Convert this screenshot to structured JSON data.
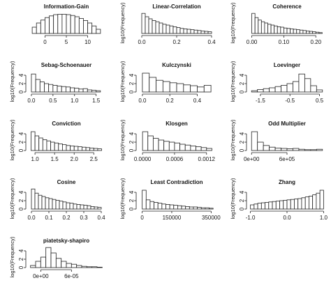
{
  "chart_data": [
    {
      "type": "histogram",
      "title": "Information-Gain",
      "bins": [
        -3,
        -2,
        -1,
        0,
        1,
        2,
        3,
        4,
        5,
        6,
        7,
        8,
        9,
        10,
        11,
        12,
        13
      ],
      "values": [
        1.5,
        2.5,
        3.2,
        3.8,
        4.2,
        4.5,
        4.6,
        4.6,
        4.5,
        4.3,
        4,
        3.6,
        3.1,
        2.5,
        1.8,
        1
      ],
      "xlim": [
        -4,
        14
      ],
      "xticks": [
        0,
        5,
        10
      ],
      "ylim": [
        0,
        5
      ]
    },
    {
      "type": "histogram",
      "title": "Linear-Correlation",
      "ylabel": "log10(Frequency)",
      "bins": [
        0,
        0.02,
        0.04,
        0.06,
        0.08,
        0.1,
        0.12,
        0.14,
        0.16,
        0.18,
        0.2,
        0.22,
        0.24,
        0.26,
        0.28,
        0.3,
        0.32,
        0.34,
        0.36,
        0.38,
        0.4
      ],
      "values": [
        4.8,
        4,
        3.5,
        3.1,
        2.8,
        2.5,
        2.2,
        2,
        1.8,
        1.6,
        1.4,
        1.2,
        1.1,
        1,
        0.9,
        0.8,
        0.7,
        0.6,
        0.5,
        0.4
      ],
      "xlim": [
        -0.02,
        0.42
      ],
      "xticks": [
        {
          "value": 0,
          "label": "0.0"
        },
        0.2,
        0.4
      ],
      "ylim": [
        0,
        5
      ]
    },
    {
      "type": "histogram",
      "title": "Coherence",
      "ylabel": "log10(Frequency)",
      "bins": [
        0,
        0.01,
        0.02,
        0.03,
        0.04,
        0.05,
        0.06,
        0.07,
        0.08,
        0.09,
        0.1,
        0.11,
        0.12,
        0.13,
        0.14,
        0.15,
        0.16,
        0.17,
        0.18,
        0.19,
        0.2,
        0.21,
        0.22
      ],
      "values": [
        4.8,
        3.8,
        3.2,
        2.8,
        2.5,
        2.2,
        2,
        1.8,
        1.6,
        1.5,
        1.3,
        1.2,
        1.1,
        1,
        0.9,
        0.8,
        0.7,
        0.6,
        0.5,
        0.4,
        0.3,
        0.2
      ],
      "xlim": [
        -0.01,
        0.23
      ],
      "xticks": [
        {
          "value": 0,
          "label": "0.00"
        },
        {
          "value": 0.1,
          "label": "0.10"
        },
        {
          "value": 0.2,
          "label": "0.20"
        }
      ],
      "ylim": [
        0,
        5
      ]
    },
    {
      "type": "histogram",
      "title": "Sebag-Schoenauer",
      "ylabel": "log10(Frequency)",
      "bins": [
        0,
        0.1,
        0.2,
        0.3,
        0.4,
        0.5,
        0.6,
        0.7,
        0.8,
        0.9,
        1,
        1.1,
        1.2,
        1.3,
        1.4,
        1.5,
        1.6
      ],
      "values": [
        4.3,
        3,
        2.4,
        2,
        1.8,
        1.6,
        1.4,
        1.3,
        1.2,
        1,
        0.9,
        0.7,
        0.8,
        0.5,
        0.4,
        0.3
      ],
      "xlim": [
        -0.08,
        1.7
      ],
      "xticks": [
        {
          "value": 0,
          "label": "0.0"
        },
        0.5,
        {
          "value": 1,
          "label": "1.0"
        },
        1.5
      ],
      "ylim": [
        0,
        5
      ],
      "yticks": [
        0,
        2,
        4
      ]
    },
    {
      "type": "histogram",
      "title": "Kulczynski",
      "ylabel": "log10(Frequency)",
      "bins": [
        0,
        0.05,
        0.1,
        0.15,
        0.2,
        0.25,
        0.3,
        0.35,
        0.4,
        0.45,
        0.5
      ],
      "values": [
        4.5,
        3.5,
        2.8,
        2.5,
        2.2,
        2,
        1.7,
        1.5,
        1.2,
        1.6
      ],
      "xlim": [
        -0.03,
        0.53
      ],
      "xticks": [
        {
          "value": 0,
          "label": "0.0"
        },
        0.2,
        0.4
      ],
      "ylim": [
        0,
        5
      ],
      "yticks": [
        0,
        2,
        4
      ]
    },
    {
      "type": "histogram",
      "title": "Loevinger",
      "ylabel": "log10(Frequency)",
      "bins": [
        -1.8,
        -1.6,
        -1.4,
        -1.2,
        -1,
        -0.8,
        -0.6,
        -0.4,
        -0.2,
        0,
        0.2,
        0.4,
        0.6
      ],
      "values": [
        0.3,
        0.6,
        0.8,
        1,
        1.3,
        1.6,
        2,
        2.5,
        4.3,
        3.2,
        1.5,
        0.5
      ],
      "xlim": [
        -1.9,
        0.7
      ],
      "xticks": [
        -1.5,
        -0.5,
        0.5
      ],
      "ylim": [
        0,
        5
      ],
      "yticks": [
        0,
        2,
        4
      ]
    },
    {
      "type": "histogram",
      "title": "Conviction",
      "ylabel": "log10(Frequency)",
      "bins": [
        0.9,
        1,
        1.1,
        1.2,
        1.3,
        1.4,
        1.5,
        1.6,
        1.7,
        1.8,
        1.9,
        2,
        2.1,
        2.2,
        2.3,
        2.4,
        2.5,
        2.6,
        2.7
      ],
      "values": [
        4.5,
        3.5,
        3,
        2.6,
        2.3,
        2,
        1.8,
        1.6,
        1.4,
        1.2,
        1.1,
        1,
        0.9,
        0.8,
        0.7,
        0.6,
        0.5,
        0.4
      ],
      "xlim": [
        0.82,
        2.78
      ],
      "xticks": [
        {
          "value": 1,
          "label": "1.0"
        },
        1.5,
        {
          "value": 2,
          "label": "2.0"
        },
        2.5
      ],
      "ylim": [
        0,
        5
      ],
      "yticks": [
        0,
        2,
        4
      ]
    },
    {
      "type": "histogram",
      "title": "Klosgen",
      "ylabel": "log10(Frequency)",
      "bins": [
        0,
        0.0001,
        0.0002,
        0.0003,
        0.0004,
        0.0005,
        0.0006,
        0.0007,
        0.0008,
        0.0009,
        0.001,
        0.0011,
        0.0012,
        0.0013
      ],
      "values": [
        4.5,
        3.5,
        2.9,
        2.5,
        2.2,
        2,
        1.8,
        1.5,
        1.3,
        1.1,
        0.9,
        0.7,
        0.5
      ],
      "xlim": [
        -8e-05,
        0.00136
      ],
      "xticks": [
        {
          "value": 0,
          "label": "0.0000"
        },
        0.0006,
        0.0012
      ],
      "ylim": [
        0,
        5
      ],
      "yticks": [
        0,
        2,
        4
      ]
    },
    {
      "type": "histogram",
      "title": "Odd Multiplier",
      "ylabel": "log10(Frequency)",
      "bins": [
        0,
        100000,
        200000,
        300000,
        400000,
        500000,
        600000,
        700000,
        800000,
        900000,
        1000000,
        1100000,
        1200000
      ],
      "values": [
        4.5,
        2,
        1.2,
        0.8,
        0.6,
        0.5,
        0.4,
        0.5,
        0.3,
        0.2,
        0.2,
        0.3
      ],
      "xlim": [
        -50000,
        1250000
      ],
      "xticks": [
        {
          "value": 0,
          "label": "0e+00"
        },
        {
          "value": 600000,
          "label": "6e+05"
        }
      ],
      "ylim": [
        0,
        5
      ],
      "yticks": [
        0,
        2,
        4
      ]
    },
    {
      "type": "histogram",
      "title": "Cosine",
      "ylabel": "log10(Frequency)",
      "bins": [
        0,
        0.02,
        0.04,
        0.06,
        0.08,
        0.1,
        0.12,
        0.14,
        0.16,
        0.18,
        0.2,
        0.22,
        0.24,
        0.26,
        0.28,
        0.3,
        0.32,
        0.34,
        0.36,
        0.38,
        0.4
      ],
      "values": [
        4.8,
        3.8,
        3.3,
        3,
        2.7,
        2.5,
        2.3,
        2.1,
        1.9,
        1.7,
        1.5,
        1.4,
        1.2,
        1.1,
        1,
        0.9,
        0.8,
        0.6,
        0.5,
        0.4
      ],
      "xlim": [
        -0.02,
        0.42
      ],
      "xticks": [
        {
          "value": 0,
          "label": "0.0"
        },
        0.1,
        0.2,
        0.3,
        0.4
      ],
      "ylim": [
        0,
        5
      ],
      "yticks": [
        0,
        2,
        4
      ]
    },
    {
      "type": "histogram",
      "title": "Least Contradiction",
      "ylabel": "log10(Frequency)",
      "bins": [
        0,
        20000,
        40000,
        60000,
        80000,
        100000,
        120000,
        140000,
        160000,
        180000,
        200000,
        220000,
        240000,
        260000,
        280000,
        300000,
        320000,
        340000,
        360000
      ],
      "values": [
        4.5,
        2.2,
        1.8,
        1.6,
        1.4,
        1.2,
        1.1,
        1,
        0.9,
        0.8,
        0.7,
        0.6,
        0.5,
        0.5,
        0.4,
        0.3,
        0.3,
        0.2
      ],
      "xlim": [
        -20000,
        370000
      ],
      "xticks": [
        0,
        150000,
        350000
      ],
      "ylim": [
        0,
        5
      ],
      "yticks": [
        0,
        2,
        4
      ]
    },
    {
      "type": "histogram",
      "title": "Zhang",
      "ylabel": "log10(Frequency)",
      "bins": [
        -1,
        -0.9,
        -0.8,
        -0.7,
        -0.6,
        -0.5,
        -0.4,
        -0.3,
        -0.2,
        -0.1,
        0,
        0.1,
        0.2,
        0.3,
        0.4,
        0.5,
        0.6,
        0.7,
        0.8,
        0.9,
        1
      ],
      "values": [
        1,
        1.2,
        1.4,
        1.5,
        1.6,
        1.7,
        1.8,
        1.9,
        2,
        2.1,
        2.2,
        2.3,
        2.4,
        2.5,
        2.7,
        2.9,
        3.1,
        3.4,
        3.8,
        4.5
      ],
      "xlim": [
        -1.05,
        1.05
      ],
      "xticks": [
        {
          "value": -1,
          "label": "-1.0"
        },
        {
          "value": 0,
          "label": "0.0"
        },
        {
          "value": 1,
          "label": "1.0"
        }
      ],
      "ylim": [
        0,
        5
      ],
      "yticks": [
        0,
        2,
        4
      ]
    },
    {
      "type": "histogram",
      "title": "piatetsky-shapiro",
      "ylabel": "log10(Frequency)",
      "bins": [
        -2e-05,
        -1e-05,
        0,
        1e-05,
        2e-05,
        3e-05,
        4e-05,
        5e-05,
        6e-05,
        7e-05,
        8e-05,
        9e-05,
        0.0001,
        0.00011,
        0.00012
      ],
      "values": [
        0.5,
        1.5,
        2.5,
        4.8,
        3.5,
        2.2,
        1.5,
        1,
        0.8,
        0.5,
        0.3,
        0.2,
        0.2,
        0.1
      ],
      "xlim": [
        -2.5e-05,
        0.000125
      ],
      "xticks": [
        {
          "value": 0,
          "label": "0e+00"
        },
        {
          "value": 6e-05,
          "label": "6e-05"
        }
      ],
      "ylim": [
        0,
        5
      ],
      "yticks": [
        0,
        2,
        4
      ]
    }
  ]
}
